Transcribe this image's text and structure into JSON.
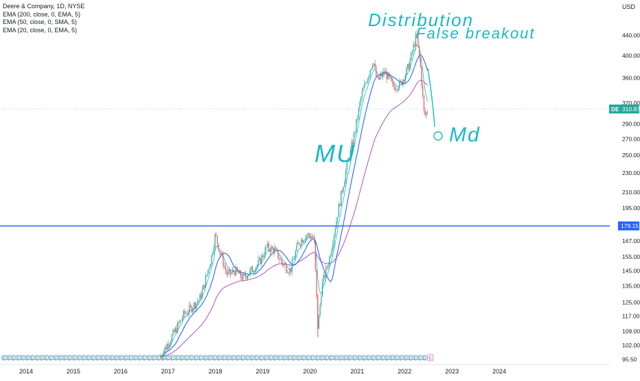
{
  "chart_data": {
    "type": "candlestick",
    "title": "Deere & Company, 1D, NYSE",
    "symbol": "DE",
    "currency": "USD",
    "indicators": [
      {
        "label": "EMA (200, close, 0, EMA, 5)",
        "color": "#9c27b0"
      },
      {
        "label": "EMA (50, close, 0, SMA, 5)",
        "color": "#2962ff"
      },
      {
        "label": "EMA (20, close, 0, EMA, 5)",
        "color": "#00bcd4"
      }
    ],
    "y_ticks": [
      "440.00",
      "400.00",
      "360.00",
      "320.00",
      "290.00",
      "270.00",
      "250.00",
      "230.00",
      "210.00",
      "195.00",
      "179.15",
      "167.00",
      "155.00",
      "145.00",
      "135.00",
      "125.00",
      "117.00",
      "109.00",
      "102.00",
      "95.50"
    ],
    "y_scale": "log",
    "ylim": [
      93.5,
      500
    ],
    "x_ticks": [
      "2014",
      "2015",
      "2016",
      "2017",
      "2018",
      "2019",
      "2020",
      "2021",
      "2022",
      "2023",
      "2024"
    ],
    "last_price": {
      "label": "DE",
      "value": "310.87"
    },
    "horizontal_line": {
      "value": "179.15",
      "color": "#2962ff"
    },
    "price_series": [
      {
        "date": "2016-11",
        "price": 97
      },
      {
        "date": "2017-01",
        "price": 103
      },
      {
        "date": "2017-03",
        "price": 110
      },
      {
        "date": "2017-05",
        "price": 118
      },
      {
        "date": "2017-07",
        "price": 122
      },
      {
        "date": "2017-09",
        "price": 127
      },
      {
        "date": "2017-10",
        "price": 134
      },
      {
        "date": "2017-12",
        "price": 155
      },
      {
        "date": "2018-01",
        "price": 172
      },
      {
        "date": "2018-02",
        "price": 160
      },
      {
        "date": "2018-04",
        "price": 142
      },
      {
        "date": "2018-06",
        "price": 145
      },
      {
        "date": "2018-08",
        "price": 140
      },
      {
        "date": "2018-10",
        "price": 145
      },
      {
        "date": "2018-12",
        "price": 150
      },
      {
        "date": "2019-02",
        "price": 162
      },
      {
        "date": "2019-04",
        "price": 160
      },
      {
        "date": "2019-06",
        "price": 150
      },
      {
        "date": "2019-08",
        "price": 145
      },
      {
        "date": "2019-10",
        "price": 165
      },
      {
        "date": "2019-12",
        "price": 172
      },
      {
        "date": "2020-02",
        "price": 170
      },
      {
        "date": "2020-03",
        "price": 110
      },
      {
        "date": "2020-04",
        "price": 135
      },
      {
        "date": "2020-06",
        "price": 155
      },
      {
        "date": "2020-08",
        "price": 190
      },
      {
        "date": "2020-10",
        "price": 230
      },
      {
        "date": "2020-12",
        "price": 270
      },
      {
        "date": "2021-02",
        "price": 330
      },
      {
        "date": "2021-04",
        "price": 370
      },
      {
        "date": "2021-05",
        "price": 392
      },
      {
        "date": "2021-06",
        "price": 355
      },
      {
        "date": "2021-08",
        "price": 370
      },
      {
        "date": "2021-10",
        "price": 345
      },
      {
        "date": "2021-12",
        "price": 350
      },
      {
        "date": "2022-02",
        "price": 380
      },
      {
        "date": "2022-04",
        "price": 440
      },
      {
        "date": "2022-05",
        "price": 380
      },
      {
        "date": "2022-06",
        "price": 300
      },
      {
        "date": "2022-07",
        "price": 310
      }
    ],
    "annotations": [
      {
        "text": "Distribution",
        "color": "#17b8c4"
      },
      {
        "text": "False breakout",
        "color": "#17b8c4"
      },
      {
        "text": "MU",
        "color": "#17b8c4"
      },
      {
        "text": "Md",
        "color": "#17b8c4"
      }
    ]
  }
}
